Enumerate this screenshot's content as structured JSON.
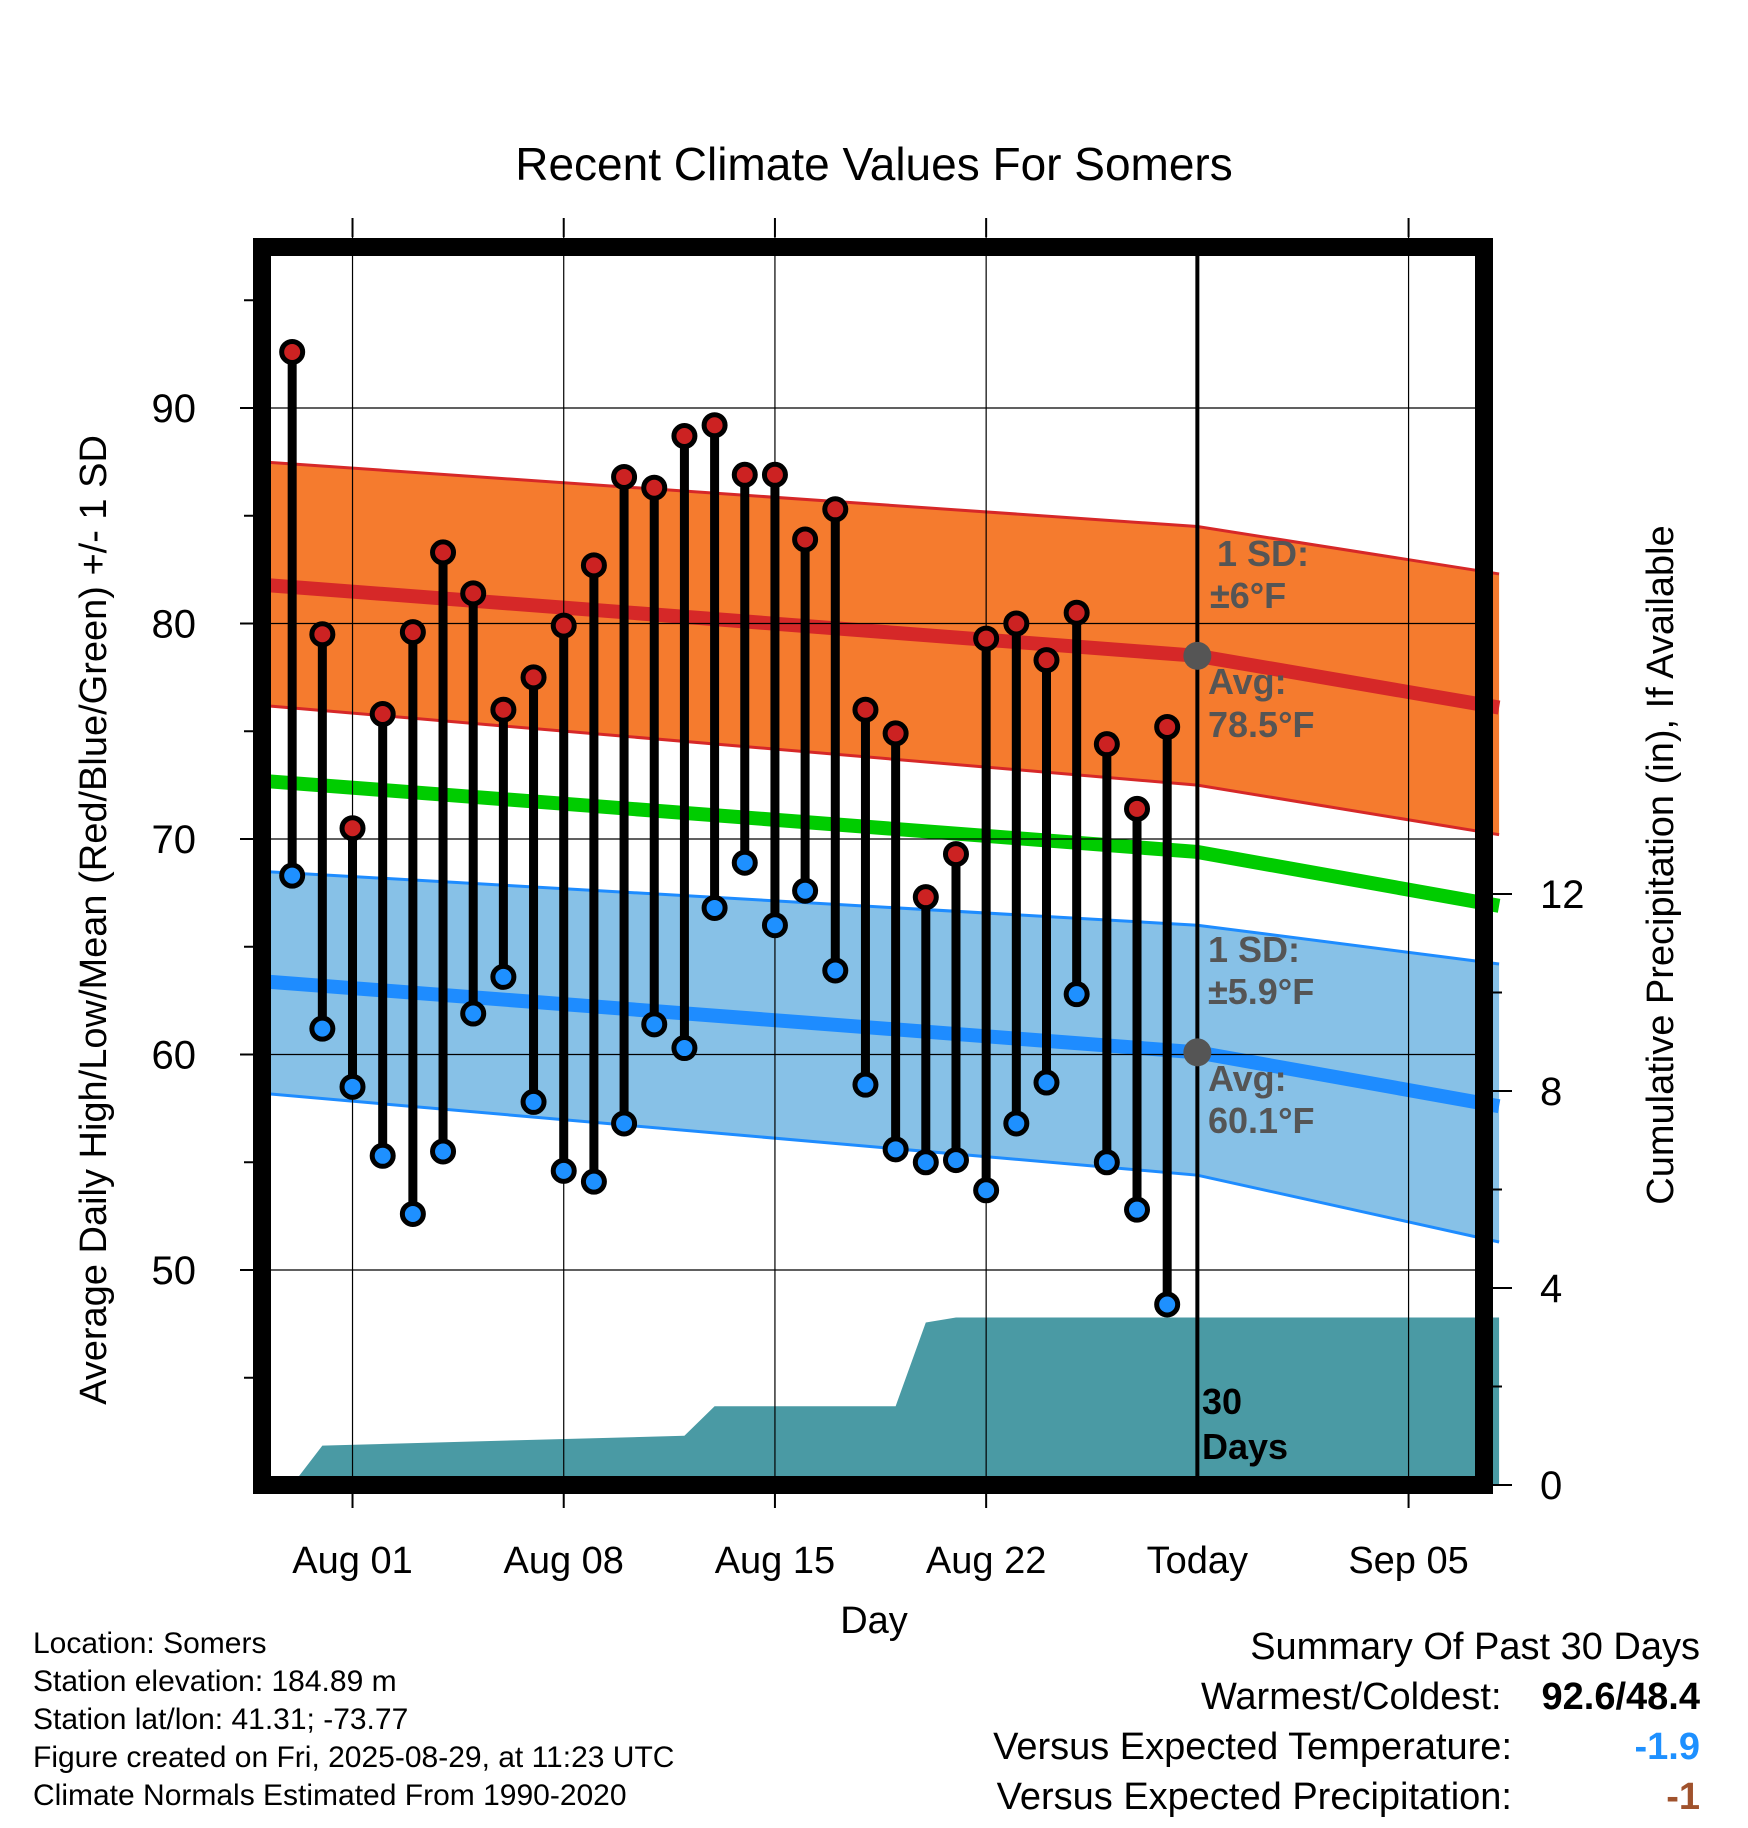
{
  "chart_data": {
    "type": "line",
    "title": "Recent Climate Values For Somers",
    "xlabel": "Day",
    "ylabel_left": "Average Daily High/Low/Mean (Red/Blue/Green) +/- 1 SD",
    "ylabel_right": "Cumulative Precipitation (in), If Available",
    "ylim_left": [
      40,
      97
    ],
    "ylim_right": [
      0,
      30
    ],
    "x_ticks": [
      "Aug 01",
      "Aug 08",
      "Aug 15",
      "Aug 22",
      "Today",
      "Sep 05"
    ],
    "y_ticks_left": [
      50,
      60,
      70,
      80,
      90
    ],
    "y_ticks_right": [
      0,
      4,
      8,
      12
    ],
    "days": [
      "2025-07-30",
      "2025-07-31",
      "2025-08-01",
      "2025-08-02",
      "2025-08-03",
      "2025-08-04",
      "2025-08-05",
      "2025-08-06",
      "2025-08-07",
      "2025-08-08",
      "2025-08-09",
      "2025-08-10",
      "2025-08-11",
      "2025-08-12",
      "2025-08-13",
      "2025-08-14",
      "2025-08-15",
      "2025-08-16",
      "2025-08-17",
      "2025-08-18",
      "2025-08-19",
      "2025-08-20",
      "2025-08-21",
      "2025-08-22",
      "2025-08-23",
      "2025-08-24",
      "2025-08-25",
      "2025-08-26",
      "2025-08-27",
      "2025-08-28"
    ],
    "series": [
      {
        "name": "Daily High",
        "color": "#cc2222",
        "values": [
          92.6,
          79.5,
          70.5,
          75.8,
          79.6,
          83.3,
          81.4,
          76.0,
          77.5,
          79.9,
          82.7,
          86.8,
          86.3,
          88.7,
          89.2,
          86.9,
          86.9,
          83.9,
          85.3,
          76.0,
          74.9,
          67.3,
          69.3,
          79.3,
          80.0,
          78.3,
          80.5,
          74.4,
          71.4,
          75.2
        ]
      },
      {
        "name": "Daily Low",
        "color": "#1e90ff",
        "values": [
          68.3,
          61.2,
          58.5,
          55.3,
          52.6,
          55.5,
          61.9,
          63.6,
          57.8,
          54.6,
          54.1,
          56.8,
          61.4,
          60.3,
          66.8,
          68.9,
          66.0,
          67.6,
          63.9,
          58.6,
          55.6,
          55.0,
          55.1,
          53.7,
          56.8,
          58.7,
          62.8,
          55.0,
          52.8,
          48.4
        ]
      }
    ],
    "normal_high": {
      "x": [
        "2025-07-29",
        "2025-08-29",
        "2025-09-08"
      ],
      "mean": [
        81.8,
        78.5,
        76.1
      ],
      "upper": [
        87.5,
        84.5,
        82.3
      ],
      "lower": [
        76.2,
        72.5,
        70.2
      ]
    },
    "normal_low": {
      "x": [
        "2025-07-29",
        "2025-08-29",
        "2025-09-08"
      ],
      "mean": [
        63.4,
        60.1,
        57.6
      ],
      "upper": [
        68.5,
        66.0,
        64.2
      ],
      "lower": [
        58.2,
        54.4,
        51.3
      ]
    },
    "normal_mean": {
      "x": [
        "2025-07-29",
        "2025-08-29",
        "2025-09-08"
      ],
      "values": [
        72.7,
        69.4,
        66.9
      ]
    },
    "precipitation": {
      "x": [
        "2025-07-30",
        "2025-07-31",
        "2025-08-12",
        "2025-08-13",
        "2025-08-19",
        "2025-08-20",
        "2025-08-21",
        "2025-09-08"
      ],
      "values": [
        0,
        0.8,
        1.0,
        1.6,
        1.6,
        3.3,
        3.4,
        3.4
      ]
    },
    "today": "2025-08-29",
    "grid": true
  },
  "annotations": {
    "high_sd": "1 SD:",
    "high_sd_value": "±6°F",
    "high_avg": "Avg:",
    "high_avg_value": "78.5°F",
    "low_sd": "1 SD:",
    "low_sd_value": "±5.9°F",
    "low_avg": "Avg:",
    "low_avg_value": "60.1°F",
    "days_count": "30",
    "days_word": "Days"
  },
  "info": {
    "location": "Location: Somers",
    "elevation": "Station elevation: 184.89 m",
    "latlon": "Station lat/lon: 41.31; -73.77",
    "created": "Figure created on Fri, 2025-08-29, at 11:23 UTC",
    "normals": "Climate Normals Estimated From 1990-2020"
  },
  "summary": {
    "title": "Summary Of Past 30 Days",
    "warm_label": "Warmest/Coldest:",
    "warm_value": "92.6/48.4",
    "temp_label": "Versus Expected Temperature:",
    "temp_value": "-1.9",
    "temp_color": "#1e90ff",
    "precip_label": "Versus Expected Precipitation:",
    "precip_value": "-1",
    "precip_color": "#a0522d"
  }
}
